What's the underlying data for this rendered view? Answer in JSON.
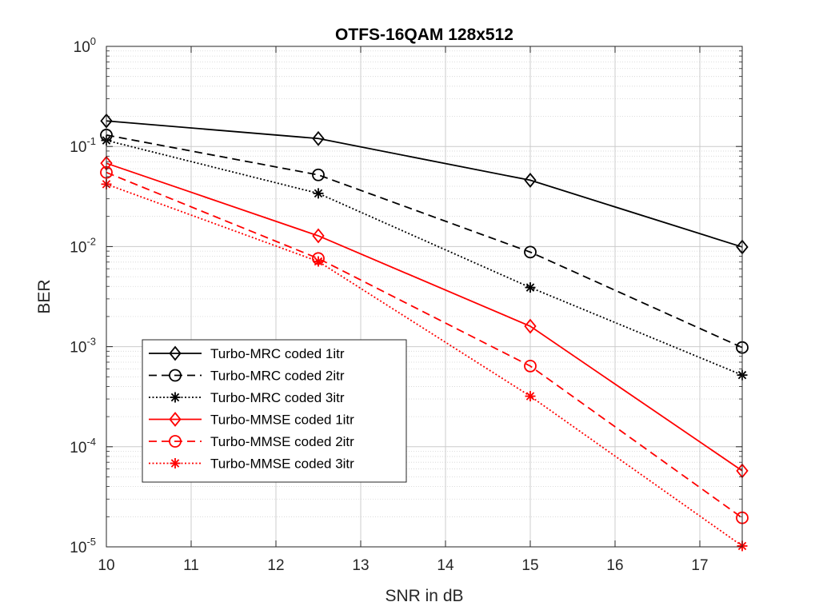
{
  "chart_data": {
    "type": "line",
    "title": "OTFS-16QAM 128x512",
    "xlabel": "SNR in dB",
    "ylabel": "BER",
    "xlim": [
      10,
      17.5
    ],
    "ylim": [
      1e-05,
      1
    ],
    "yscale": "log",
    "grid": true,
    "legend_position": "bottom-left",
    "x_ticks": [
      "10",
      "11",
      "12",
      "13",
      "14",
      "15",
      "16",
      "17"
    ],
    "y_ticks": [
      {
        "base": "10",
        "exp": "-5"
      },
      {
        "base": "10",
        "exp": "-4"
      },
      {
        "base": "10",
        "exp": "-3"
      },
      {
        "base": "10",
        "exp": "-2"
      },
      {
        "base": "10",
        "exp": "-1"
      },
      {
        "base": "10",
        "exp": "0"
      }
    ],
    "x": [
      10,
      12.5,
      15,
      17.5
    ],
    "series": [
      {
        "name": "Turbo-MRC coded 1itr",
        "color": "#000000",
        "line": "solid",
        "marker": "diamond",
        "values": [
          0.18,
          0.12,
          0.046,
          0.0099
        ]
      },
      {
        "name": "Turbo-MRC coded 2itr",
        "color": "#000000",
        "line": "dashed",
        "marker": "circle",
        "values": [
          0.13,
          0.052,
          0.0088,
          0.00098
        ]
      },
      {
        "name": "Turbo-MRC coded 3itr",
        "color": "#000000",
        "line": "dotted",
        "marker": "asterisk",
        "values": [
          0.115,
          0.034,
          0.0039,
          0.00052
        ]
      },
      {
        "name": "Turbo-MMSE coded 1itr",
        "color": "#ff0000",
        "line": "solid",
        "marker": "diamond",
        "values": [
          0.068,
          0.0128,
          0.0016,
          5.75e-05
        ]
      },
      {
        "name": "Turbo-MMSE coded 2itr",
        "color": "#ff0000",
        "line": "dashed",
        "marker": "circle",
        "values": [
          0.055,
          0.0076,
          0.00064,
          1.95e-05
        ]
      },
      {
        "name": "Turbo-MMSE coded 3itr",
        "color": "#ff0000",
        "line": "dotted",
        "marker": "asterisk",
        "values": [
          0.042,
          0.0071,
          0.00032,
          1.02e-05
        ]
      }
    ]
  }
}
